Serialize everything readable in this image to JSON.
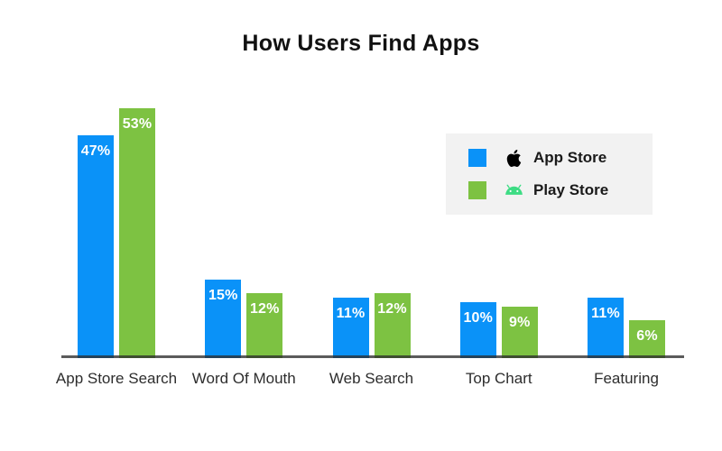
{
  "title": "How Users Find Apps",
  "colors": {
    "app_store_blue": "#0a92f8",
    "play_store_green": "#7dc242",
    "android_icon_green": "#3ddc84",
    "apple_icon_black": "#000000",
    "axis_gray": "#555555",
    "legend_background": "#f2f2f2"
  },
  "legend": {
    "items": [
      {
        "label": "App Store",
        "icon": "apple-icon"
      },
      {
        "label": "Play Store",
        "icon": "android-icon"
      }
    ]
  },
  "chart_data": {
    "type": "bar",
    "title": "How Users Find Apps",
    "categories": [
      "App Store Search",
      "Word Of Mouth",
      "Web Search",
      "Top Chart",
      "Featuring"
    ],
    "series": [
      {
        "name": "App Store",
        "color": "#0a92f8",
        "values": [
          47,
          15,
          11,
          10,
          11
        ]
      },
      {
        "name": "Play Store",
        "color": "#7dc242",
        "values": [
          53,
          12,
          12,
          9,
          6
        ]
      }
    ],
    "value_suffix": "%",
    "value_labels_shown": [
      "47%",
      "53%",
      "15%",
      "12%",
      "11%",
      "12%",
      "10%",
      "9%",
      "11%",
      "6%"
    ],
    "xlabel": "",
    "ylabel": "",
    "ylim": [
      0,
      60
    ],
    "grid": false,
    "axis_line": "x-only",
    "legend_position": "upper-right"
  }
}
